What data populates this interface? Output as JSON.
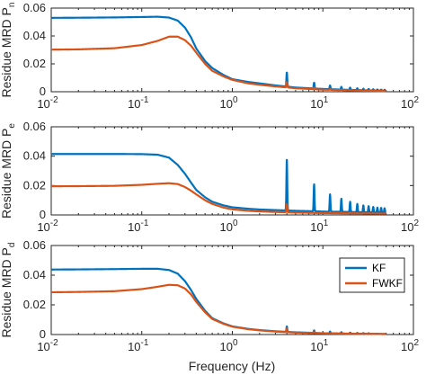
{
  "figure": {
    "xlabel": "Frequency (Hz)"
  },
  "chart_data": [
    {
      "type": "line",
      "ylabel": "Residue MRD P",
      "ylabel_sub": "n",
      "xscale": "log",
      "xlim": [
        0.01,
        100
      ],
      "ylim": [
        0,
        0.06
      ],
      "yticks": [
        0,
        0.02,
        0.04,
        0.06
      ],
      "yticklabels": [
        "0",
        "0.02",
        "0.04",
        "0.06"
      ],
      "xticklabels": [
        {
          "base": "10",
          "exp": "-2"
        },
        {
          "base": "10",
          "exp": "-1"
        },
        {
          "base": "10",
          "exp": "0"
        },
        {
          "base": "10",
          "exp": "1"
        },
        {
          "base": "10",
          "exp": "2"
        }
      ],
      "series": [
        {
          "name": "KF",
          "color": "#0072BD",
          "x": [
            0.01,
            0.02,
            0.05,
            0.1,
            0.15,
            0.2,
            0.25,
            0.3,
            0.35,
            0.4,
            0.5,
            0.6,
            0.8,
            1.0,
            1.5,
            2.0,
            3.0,
            4.0,
            5.0,
            8.0,
            10.0,
            20.0,
            30.0,
            50.0
          ],
          "y": [
            0.053,
            0.0531,
            0.0533,
            0.0536,
            0.0538,
            0.0532,
            0.051,
            0.046,
            0.039,
            0.031,
            0.022,
            0.017,
            0.012,
            0.009,
            0.007,
            0.006,
            0.0045,
            0.0037,
            0.003,
            0.0023,
            0.002,
            0.0013,
            0.001,
            0.0007
          ],
          "peaks": [
            {
              "x": 4.0,
              "y": 0.014
            },
            {
              "x": 8.0,
              "y": 0.0065
            },
            {
              "x": 12.0,
              "y": 0.0045
            },
            {
              "x": 16.0,
              "y": 0.0035
            },
            {
              "x": 20.0,
              "y": 0.003
            },
            {
              "x": 24.0,
              "y": 0.0025
            },
            {
              "x": 28.0,
              "y": 0.0022
            },
            {
              "x": 32.0,
              "y": 0.002
            },
            {
              "x": 36.0,
              "y": 0.0018
            },
            {
              "x": 40.0,
              "y": 0.0016
            },
            {
              "x": 44.0,
              "y": 0.0015
            },
            {
              "x": 48.0,
              "y": 0.0014
            }
          ]
        },
        {
          "name": "FWKF",
          "color": "#D95319",
          "x": [
            0.01,
            0.02,
            0.05,
            0.1,
            0.15,
            0.2,
            0.25,
            0.3,
            0.35,
            0.4,
            0.5,
            0.6,
            0.8,
            1.0,
            1.5,
            2.0,
            3.0,
            4.0,
            5.0,
            8.0,
            10.0,
            20.0,
            30.0,
            50.0
          ],
          "y": [
            0.0302,
            0.0304,
            0.0312,
            0.0335,
            0.0365,
            0.0395,
            0.0395,
            0.037,
            0.033,
            0.028,
            0.02,
            0.015,
            0.011,
            0.0085,
            0.006,
            0.005,
            0.0038,
            0.0031,
            0.0025,
            0.0018,
            0.0015,
            0.001,
            0.0007,
            0.0005
          ],
          "peaks": [
            {
              "x": 4.0,
              "y": 0.007
            },
            {
              "x": 8.0,
              "y": 0.003
            },
            {
              "x": 12.0,
              "y": 0.002
            },
            {
              "x": 16.0,
              "y": 0.0015
            }
          ]
        }
      ]
    },
    {
      "type": "line",
      "ylabel": "Residue MRD P",
      "ylabel_sub": "e",
      "xscale": "log",
      "xlim": [
        0.01,
        100
      ],
      "ylim": [
        0,
        0.06
      ],
      "yticks": [
        0,
        0.02,
        0.04,
        0.06
      ],
      "yticklabels": [
        "0",
        "0.02",
        "0.04",
        "0.06"
      ],
      "xticklabels": [
        {
          "base": "10",
          "exp": "-2"
        },
        {
          "base": "10",
          "exp": "-1"
        },
        {
          "base": "10",
          "exp": "0"
        },
        {
          "base": "10",
          "exp": "1"
        },
        {
          "base": "10",
          "exp": "2"
        }
      ],
      "series": [
        {
          "name": "KF",
          "color": "#0072BD",
          "x": [
            0.01,
            0.02,
            0.05,
            0.1,
            0.15,
            0.2,
            0.25,
            0.3,
            0.35,
            0.4,
            0.5,
            0.6,
            0.8,
            1.0,
            1.5,
            2.0,
            3.0,
            4.0,
            5.0,
            8.0,
            10.0,
            20.0,
            30.0,
            50.0
          ],
          "y": [
            0.0415,
            0.0415,
            0.0415,
            0.0414,
            0.041,
            0.039,
            0.034,
            0.028,
            0.022,
            0.017,
            0.012,
            0.009,
            0.0065,
            0.0052,
            0.0042,
            0.0037,
            0.0033,
            0.003,
            0.0028,
            0.0025,
            0.0023,
            0.002,
            0.0018,
            0.0016
          ],
          "peaks": [
            {
              "x": 4.0,
              "y": 0.038
            },
            {
              "x": 8.0,
              "y": 0.021
            },
            {
              "x": 12.0,
              "y": 0.014
            },
            {
              "x": 16.0,
              "y": 0.011
            },
            {
              "x": 20.0,
              "y": 0.009
            },
            {
              "x": 24.0,
              "y": 0.0075
            },
            {
              "x": 28.0,
              "y": 0.0065
            },
            {
              "x": 32.0,
              "y": 0.006
            },
            {
              "x": 36.0,
              "y": 0.0055
            },
            {
              "x": 40.0,
              "y": 0.005
            },
            {
              "x": 44.0,
              "y": 0.0048
            },
            {
              "x": 48.0,
              "y": 0.0046
            }
          ]
        },
        {
          "name": "FWKF",
          "color": "#D95319",
          "x": [
            0.01,
            0.02,
            0.05,
            0.1,
            0.15,
            0.2,
            0.25,
            0.3,
            0.35,
            0.4,
            0.5,
            0.6,
            0.8,
            1.0,
            1.5,
            2.0,
            3.0,
            4.0,
            5.0,
            8.0,
            10.0,
            20.0,
            30.0,
            50.0
          ],
          "y": [
            0.0195,
            0.0196,
            0.0198,
            0.0205,
            0.0212,
            0.0216,
            0.021,
            0.019,
            0.0165,
            0.014,
            0.01,
            0.0075,
            0.005,
            0.0038,
            0.0028,
            0.0024,
            0.002,
            0.0018,
            0.0016,
            0.0014,
            0.0013,
            0.0011,
            0.001,
            0.0009
          ],
          "peaks": [
            {
              "x": 4.0,
              "y": 0.0075
            }
          ]
        }
      ]
    },
    {
      "type": "line",
      "ylabel": "Residue MRD P",
      "ylabel_sub": "d",
      "xscale": "log",
      "xlim": [
        0.01,
        100
      ],
      "ylim": [
        0,
        0.06
      ],
      "yticks": [
        0,
        0.02,
        0.04,
        0.06
      ],
      "yticklabels": [
        "0",
        "0.02",
        "0.04",
        "0.06"
      ],
      "xticklabels": [
        {
          "base": "10",
          "exp": "-2"
        },
        {
          "base": "10",
          "exp": "-1"
        },
        {
          "base": "10",
          "exp": "0"
        },
        {
          "base": "10",
          "exp": "1"
        },
        {
          "base": "10",
          "exp": "2"
        }
      ],
      "legend": {
        "position": "east",
        "entries": [
          "KF",
          "FWKF"
        ]
      },
      "series": [
        {
          "name": "KF",
          "color": "#0072BD",
          "x": [
            0.01,
            0.02,
            0.05,
            0.1,
            0.15,
            0.2,
            0.25,
            0.3,
            0.35,
            0.4,
            0.5,
            0.6,
            0.8,
            1.0,
            1.5,
            2.0,
            3.0,
            4.0,
            5.0,
            8.0,
            10.0,
            20.0,
            30.0,
            50.0
          ],
          "y": [
            0.0438,
            0.0439,
            0.0441,
            0.0443,
            0.0443,
            0.0435,
            0.041,
            0.036,
            0.03,
            0.024,
            0.016,
            0.011,
            0.0075,
            0.0055,
            0.0038,
            0.003,
            0.0022,
            0.0018,
            0.0015,
            0.0011,
            0.0009,
            0.0006,
            0.0005,
            0.0004
          ],
          "peaks": [
            {
              "x": 4.0,
              "y": 0.0055
            },
            {
              "x": 8.0,
              "y": 0.0028
            },
            {
              "x": 12.0,
              "y": 0.002
            },
            {
              "x": 16.0,
              "y": 0.0016
            },
            {
              "x": 20.0,
              "y": 0.0013
            },
            {
              "x": 24.0,
              "y": 0.0011
            },
            {
              "x": 28.0,
              "y": 0.001
            },
            {
              "x": 32.0,
              "y": 0.0009
            }
          ]
        },
        {
          "name": "FWKF",
          "color": "#D95319",
          "x": [
            0.01,
            0.02,
            0.05,
            0.1,
            0.15,
            0.2,
            0.25,
            0.3,
            0.35,
            0.4,
            0.5,
            0.6,
            0.8,
            1.0,
            1.5,
            2.0,
            3.0,
            4.0,
            5.0,
            8.0,
            10.0,
            20.0,
            30.0,
            50.0
          ],
          "y": [
            0.0285,
            0.0287,
            0.0292,
            0.0306,
            0.0322,
            0.0335,
            0.0332,
            0.031,
            0.027,
            0.022,
            0.015,
            0.0105,
            0.0072,
            0.0053,
            0.0036,
            0.0028,
            0.002,
            0.0016,
            0.0013,
            0.001,
            0.0008,
            0.0005,
            0.0004,
            0.0003
          ],
          "peaks": [
            {
              "x": 4.0,
              "y": 0.0042
            },
            {
              "x": 8.0,
              "y": 0.0018
            }
          ]
        }
      ]
    }
  ]
}
